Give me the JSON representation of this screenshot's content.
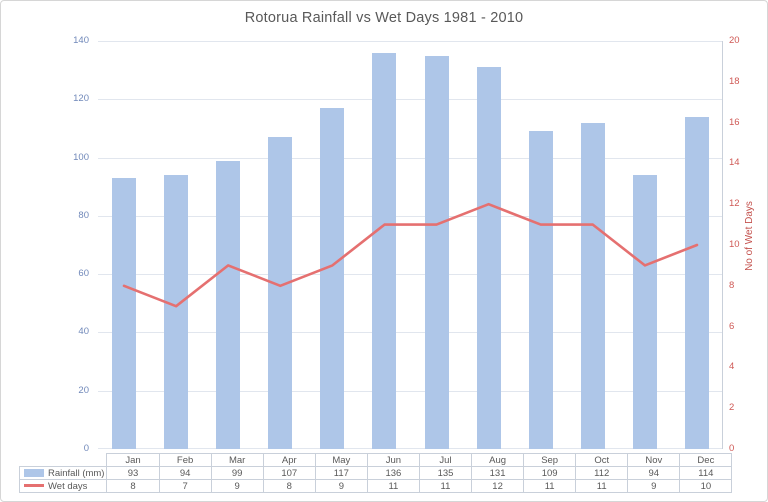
{
  "chart": {
    "title": "Rotorua Rainfall vs Wet Days 1981 - 2010",
    "right_axis_title": "No of Wet Days"
  },
  "chart_data": {
    "type": "bar",
    "subtype": "combo-bar-line-dual-axis",
    "title": "Rotorua Rainfall vs Wet Days 1981 - 2010",
    "categories": [
      "Jan",
      "Feb",
      "Mar",
      "Apr",
      "May",
      "Jun",
      "Jul",
      "Aug",
      "Sep",
      "Oct",
      "Nov",
      "Dec"
    ],
    "series": [
      {
        "name": "Rainfall (mm)",
        "type": "bar",
        "axis": "left",
        "color": "#aec6e8",
        "values": [
          93,
          94,
          99,
          107,
          117,
          136,
          135,
          131,
          109,
          112,
          94,
          114
        ]
      },
      {
        "name": "Wet days",
        "type": "line",
        "axis": "right",
        "color": "#e57070",
        "values": [
          8,
          7,
          9,
          8,
          9,
          11,
          11,
          12,
          11,
          11,
          9,
          10
        ]
      }
    ],
    "left_axis": {
      "min": 0,
      "max": 140,
      "step": 20,
      "tick_labels": [
        "0",
        "20",
        "40",
        "60",
        "80",
        "100",
        "120",
        "140"
      ],
      "label": "",
      "tick_color": "#7189ba"
    },
    "right_axis": {
      "min": 0,
      "max": 20,
      "step": 2,
      "tick_labels": [
        "0",
        "2",
        "4",
        "6",
        "8",
        "10",
        "12",
        "14",
        "16",
        "18",
        "20"
      ],
      "label": "No of Wet Days",
      "tick_color": "#cf5955"
    },
    "grid": true,
    "legend_position": "data-table-left",
    "colors": {
      "bar_fill": "#aec6e8",
      "line_stroke": "#e57070",
      "gridline": "#e1e6ee",
      "table_border": "#c9d0da",
      "title_text": "#595959",
      "table_text": "#595959",
      "frame_border": "#d6d6d6"
    }
  }
}
